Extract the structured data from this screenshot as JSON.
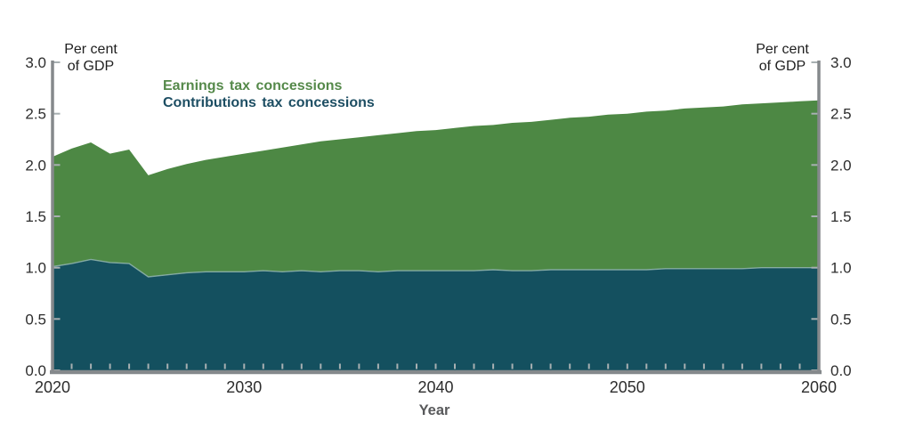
{
  "legend": {
    "items": [
      {
        "label": "Earnings tax concessions",
        "color": "#55894a"
      },
      {
        "label": "Contributions tax concessions",
        "color": "#1d4e63"
      }
    ]
  },
  "axes": {
    "left_unit_label": "Per cent\nof GDP",
    "right_unit_label": "Per cent\nof GDP",
    "x_title": "Year",
    "y_ticks": [
      "3.0",
      "2.5",
      "2.0",
      "1.5",
      "1.0",
      "0.5",
      "0.0"
    ],
    "x_ticks": [
      "2020",
      "2030",
      "2040",
      "2050",
      "2060"
    ]
  },
  "colors": {
    "axis_line": "#85898c",
    "tick_mark": "#a8b0b2",
    "boundary_line": "#8fb3ae",
    "tick_label": "#2d2d2d",
    "background": "#ffffff"
  },
  "chart_data": {
    "type": "area",
    "stacked": true,
    "title": "",
    "xlabel": "Year",
    "ylabel": "Per cent of GDP",
    "xlim": [
      2020,
      2060
    ],
    "ylim": [
      0,
      3.0
    ],
    "y_tick_interval": 0.5,
    "x_major_ticks": [
      2020,
      2030,
      2040,
      2050,
      2060
    ],
    "x_minor_tick_interval": 1,
    "grid": false,
    "legend_position": "top-left-inside",
    "x": [
      2020,
      2021,
      2022,
      2023,
      2024,
      2025,
      2026,
      2027,
      2028,
      2029,
      2030,
      2031,
      2032,
      2033,
      2034,
      2035,
      2036,
      2037,
      2038,
      2039,
      2040,
      2041,
      2042,
      2043,
      2044,
      2045,
      2046,
      2047,
      2048,
      2049,
      2050,
      2051,
      2052,
      2053,
      2054,
      2055,
      2056,
      2057,
      2058,
      2059,
      2060
    ],
    "series": [
      {
        "name": "Contributions tax concessions",
        "color": "#14505f",
        "values": [
          1.01,
          1.04,
          1.08,
          1.05,
          1.04,
          0.91,
          0.93,
          0.95,
          0.96,
          0.96,
          0.96,
          0.97,
          0.96,
          0.97,
          0.96,
          0.97,
          0.97,
          0.96,
          0.97,
          0.97,
          0.97,
          0.97,
          0.97,
          0.98,
          0.97,
          0.97,
          0.98,
          0.98,
          0.98,
          0.98,
          0.98,
          0.98,
          0.99,
          0.99,
          0.99,
          0.99,
          0.99,
          1.0,
          1.0,
          1.0,
          1.0
        ]
      },
      {
        "name": "Earnings tax concessions",
        "color": "#4d8844",
        "values": [
          1.07,
          1.12,
          1.14,
          1.06,
          1.11,
          0.99,
          1.03,
          1.06,
          1.09,
          1.12,
          1.15,
          1.17,
          1.21,
          1.23,
          1.27,
          1.28,
          1.3,
          1.33,
          1.34,
          1.36,
          1.37,
          1.39,
          1.41,
          1.41,
          1.44,
          1.45,
          1.46,
          1.48,
          1.49,
          1.51,
          1.52,
          1.54,
          1.54,
          1.56,
          1.57,
          1.58,
          1.6,
          1.6,
          1.61,
          1.62,
          1.63
        ]
      }
    ]
  }
}
